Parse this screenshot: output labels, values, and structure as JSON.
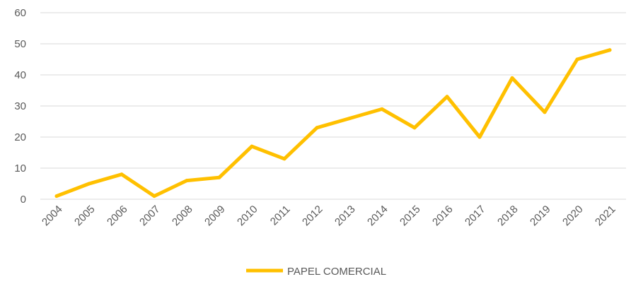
{
  "chart_data": {
    "type": "line",
    "title": "",
    "xlabel": "",
    "ylabel": "",
    "x": [
      "2004",
      "2005",
      "2006",
      "2007",
      "2008",
      "2009",
      "2010",
      "2011",
      "2012",
      "2013",
      "2014",
      "2015",
      "2016",
      "2017",
      "2018",
      "2019",
      "2020",
      "2021"
    ],
    "yticks": [
      "0",
      "10",
      "20",
      "30",
      "40",
      "50",
      "60"
    ],
    "ylim": [
      0,
      60
    ],
    "grid": true,
    "legend_position": "bottom",
    "series": [
      {
        "name": "PAPEL COMERCIAL",
        "color": "#ffc000",
        "values": [
          1,
          5,
          8,
          1,
          6,
          7,
          17,
          13,
          23,
          26,
          29,
          23,
          33,
          20,
          39,
          28,
          45,
          48
        ]
      }
    ]
  }
}
